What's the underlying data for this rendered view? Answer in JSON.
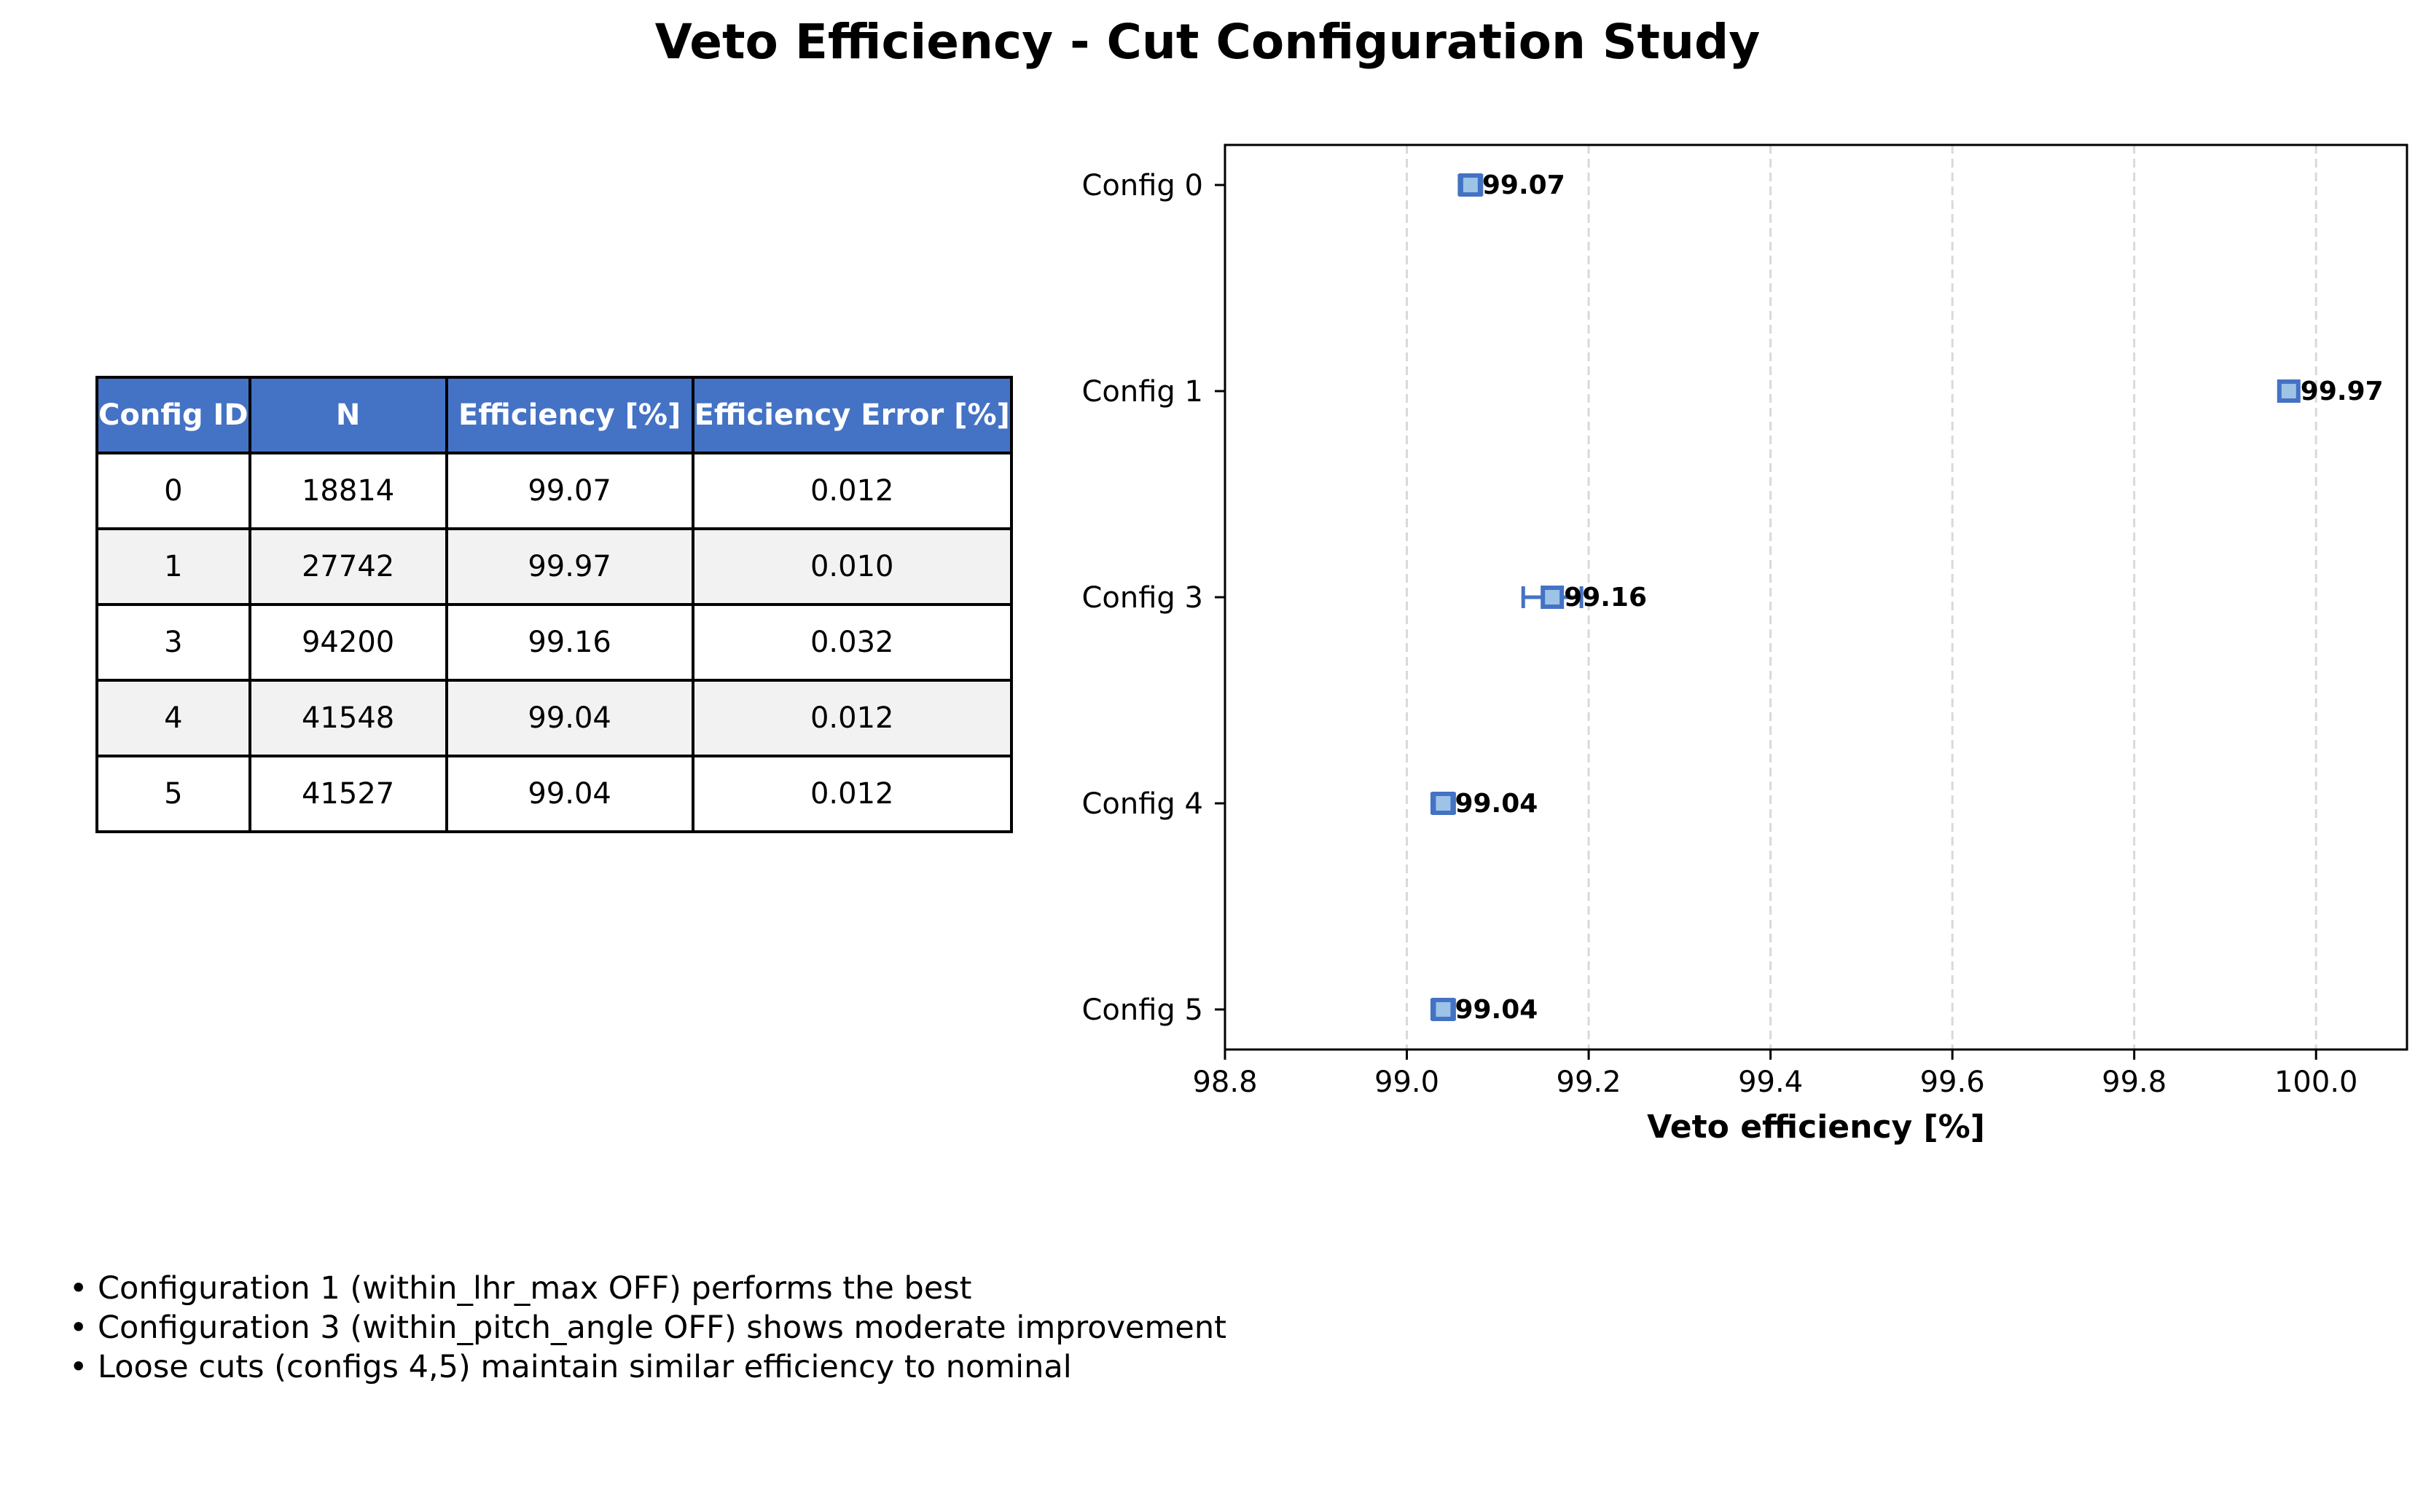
{
  "title": "Veto Efficiency - Cut Configuration Study",
  "table": {
    "headers": [
      "Config ID",
      "N",
      "Efficiency [%]",
      "Efficiency Error [%]"
    ],
    "rows": [
      [
        "0",
        "18814",
        "99.07",
        "0.012"
      ],
      [
        "1",
        "27742",
        "99.97",
        "0.010"
      ],
      [
        "3",
        "94200",
        "99.16",
        "0.032"
      ],
      [
        "4",
        "41548",
        "99.04",
        "0.012"
      ],
      [
        "5",
        "41527",
        "99.04",
        "0.012"
      ]
    ],
    "header_color": "#4472c4",
    "stripe_color": "#f2f2f2"
  },
  "chart_data": {
    "type": "scatter",
    "orientation": "horizontal",
    "title": "",
    "xlabel": "Veto efficiency [%]",
    "ylabel": "",
    "categories": [
      "Config 0",
      "Config 1",
      "Config 3",
      "Config 4",
      "Config 5"
    ],
    "values": [
      99.07,
      99.97,
      99.16,
      99.04,
      99.04
    ],
    "errors": [
      0.012,
      0.01,
      0.032,
      0.012,
      0.012
    ],
    "value_labels": [
      "99.07",
      "99.97",
      "99.16",
      "99.04",
      "99.04"
    ],
    "xlim": [
      98.8,
      100.1
    ],
    "xticks": [
      98.8,
      99.0,
      99.2,
      99.4,
      99.6,
      99.8,
      100.0
    ],
    "xtick_labels": [
      "98.8",
      "99.0",
      "99.2",
      "99.4",
      "99.6",
      "99.8",
      "100.0"
    ],
    "grid": "x-dashed",
    "marker_fill": "#9dc3e6",
    "marker_edge": "#4472c4"
  },
  "notes": [
    "• Configuration 1 (within_lhr_max OFF) performs the best",
    "• Configuration 3 (within_pitch_angle OFF) shows moderate improvement",
    "• Loose cuts (configs 4,5) maintain similar efficiency to nominal"
  ]
}
